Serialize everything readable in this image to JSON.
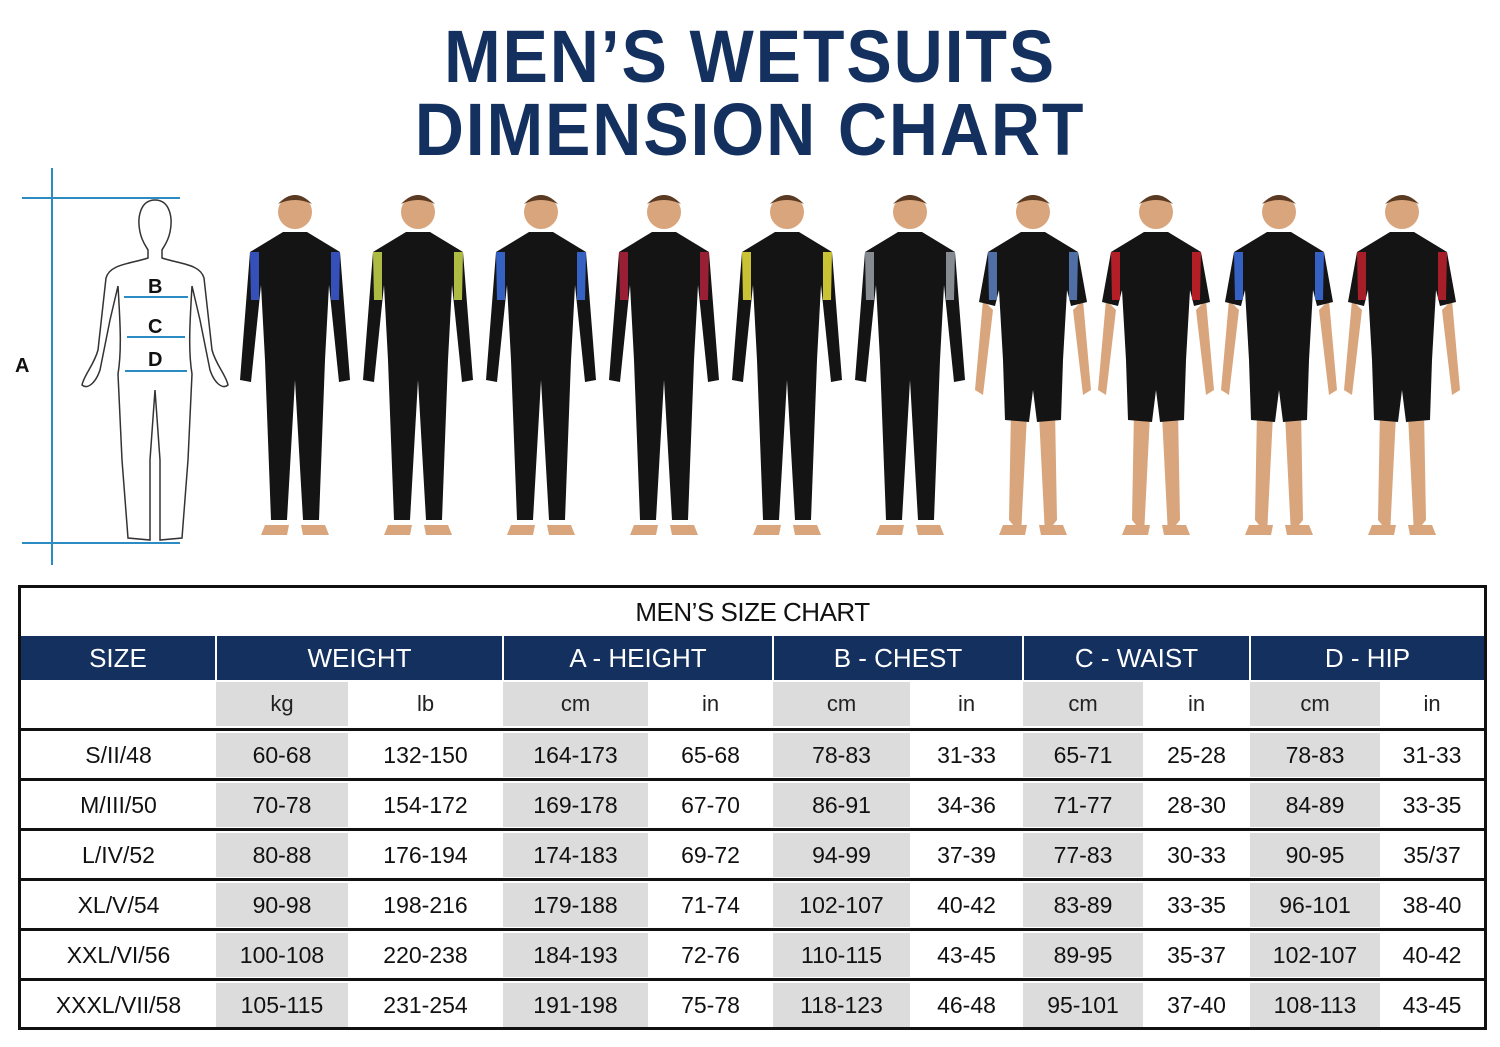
{
  "title": {
    "line1": "MEN’S WETSUITS",
    "line2": "DIMENSION CHART"
  },
  "diagram": {
    "labels": {
      "a": "A",
      "b": "B",
      "c": "C",
      "d": "D"
    },
    "line_color": "#2b8cc4"
  },
  "models": [
    {
      "style": "full",
      "accent": "#3b5bd6"
    },
    {
      "style": "full",
      "accent": "#c8d84a"
    },
    {
      "style": "full",
      "accent": "#3a6ee0"
    },
    {
      "style": "full",
      "accent": "#b0213a"
    },
    {
      "style": "full",
      "accent": "#e8e03a"
    },
    {
      "style": "full",
      "accent": "#9aa0a8"
    },
    {
      "style": "shorty",
      "accent": "#5a7fc0"
    },
    {
      "style": "shorty",
      "accent": "#d0202a"
    },
    {
      "style": "shorty",
      "accent": "#3a6ee0"
    },
    {
      "style": "shorty",
      "accent": "#c0202a"
    }
  ],
  "size_chart": {
    "caption": "MEN’S SIZE CHART",
    "header_color": "#13305f",
    "groups": [
      "SIZE",
      "WEIGHT",
      "A - HEIGHT",
      "B - CHEST",
      "C - WAIST",
      "D - HIP"
    ],
    "units": [
      "kg",
      "lb",
      "cm",
      "in",
      "cm",
      "in",
      "cm",
      "in",
      "cm",
      "in"
    ],
    "rows": [
      [
        "S/II/48",
        "60-68",
        "132-150",
        "164-173",
        "65-68",
        "78-83",
        "31-33",
        "65-71",
        "25-28",
        "78-83",
        "31-33"
      ],
      [
        "M/III/50",
        "70-78",
        "154-172",
        "169-178",
        "67-70",
        "86-91",
        "34-36",
        "71-77",
        "28-30",
        "84-89",
        "33-35"
      ],
      [
        "L/IV/52",
        "80-88",
        "176-194",
        "174-183",
        "69-72",
        "94-99",
        "37-39",
        "77-83",
        "30-33",
        "90-95",
        "35/37"
      ],
      [
        "XL/V/54",
        "90-98",
        "198-216",
        "179-188",
        "71-74",
        "102-107",
        "40-42",
        "83-89",
        "33-35",
        "96-101",
        "38-40"
      ],
      [
        "XXL/VI/56",
        "100-108",
        "220-238",
        "184-193",
        "72-76",
        "110-115",
        "43-45",
        "89-95",
        "35-37",
        "102-107",
        "40-42"
      ],
      [
        "XXXL/VII/58",
        "105-115",
        "231-254",
        "191-198",
        "75-78",
        "118-123",
        "46-48",
        "95-101",
        "37-40",
        "108-113",
        "43-45"
      ]
    ]
  }
}
